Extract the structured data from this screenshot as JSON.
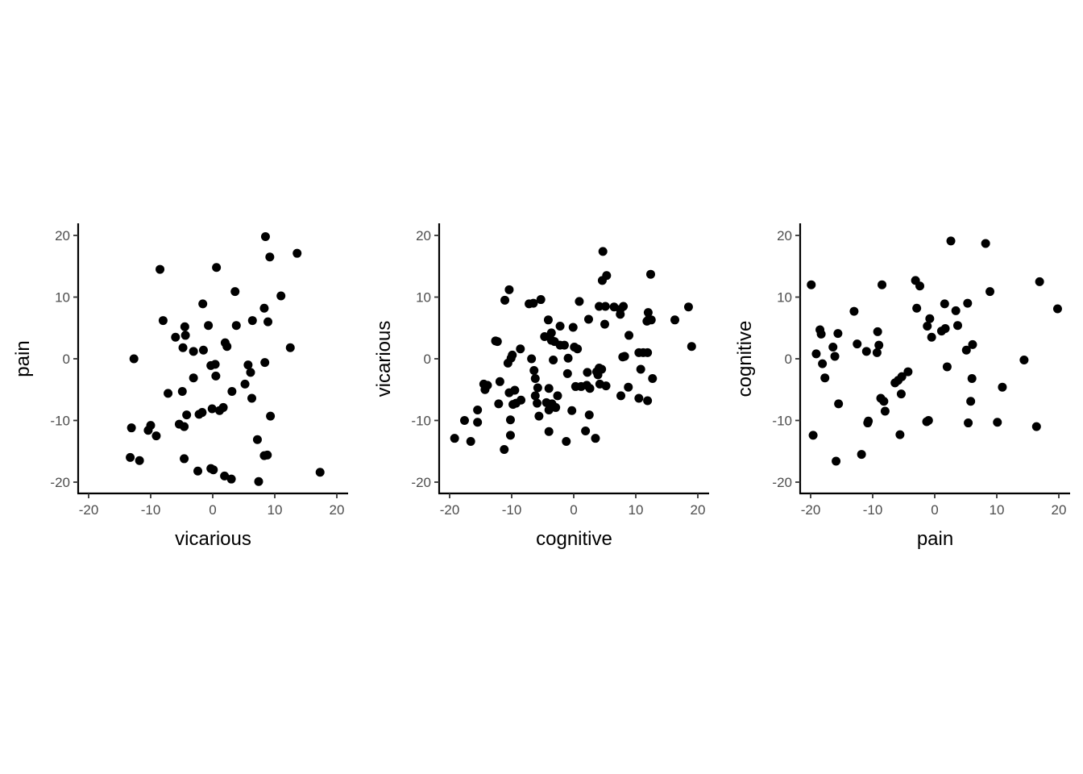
{
  "chart_data": [
    {
      "type": "scatter",
      "xlabel": "vicarious",
      "ylabel": "pain",
      "xlim": [
        -22,
        22
      ],
      "ylim": [
        -22,
        22
      ],
      "xticks": [
        -20,
        -10,
        0,
        10,
        20
      ],
      "yticks": [
        -20,
        -10,
        0,
        10,
        20
      ],
      "grid": false,
      "point_color": "#000000",
      "points": [
        {
          "x": -13.3,
          "y": -16.0
        },
        {
          "x": -11.8,
          "y": -16.5
        },
        {
          "x": -13.1,
          "y": -11.2
        },
        {
          "x": -12.7,
          "y": 0.0
        },
        {
          "x": -10.0,
          "y": -10.8
        },
        {
          "x": -10.4,
          "y": -11.6
        },
        {
          "x": -9.1,
          "y": -12.5
        },
        {
          "x": -8.5,
          "y": 14.5
        },
        {
          "x": -8.0,
          "y": 6.2
        },
        {
          "x": -7.2,
          "y": -5.6
        },
        {
          "x": -6.0,
          "y": 3.5
        },
        {
          "x": -5.4,
          "y": -10.6
        },
        {
          "x": -4.9,
          "y": -5.3
        },
        {
          "x": -4.8,
          "y": 1.8
        },
        {
          "x": -4.5,
          "y": 5.2
        },
        {
          "x": -4.4,
          "y": 3.8
        },
        {
          "x": -4.6,
          "y": -11.0
        },
        {
          "x": -4.6,
          "y": -16.2
        },
        {
          "x": -4.2,
          "y": -9.1
        },
        {
          "x": -3.1,
          "y": -3.1
        },
        {
          "x": -3.1,
          "y": 1.2
        },
        {
          "x": -2.4,
          "y": -18.2
        },
        {
          "x": -2.2,
          "y": -9.0
        },
        {
          "x": -1.7,
          "y": -8.7
        },
        {
          "x": -1.6,
          "y": 8.9
        },
        {
          "x": -1.5,
          "y": 1.4
        },
        {
          "x": -0.7,
          "y": 5.4
        },
        {
          "x": -0.3,
          "y": -1.1
        },
        {
          "x": -0.3,
          "y": -17.8
        },
        {
          "x": -0.1,
          "y": -8.1
        },
        {
          "x": 0.1,
          "y": -18.0
        },
        {
          "x": 0.4,
          "y": -0.9
        },
        {
          "x": 0.5,
          "y": -2.8
        },
        {
          "x": 0.6,
          "y": 14.8
        },
        {
          "x": 1.1,
          "y": -8.4
        },
        {
          "x": 1.7,
          "y": -7.9
        },
        {
          "x": 1.9,
          "y": -19.0
        },
        {
          "x": 2.0,
          "y": 2.6
        },
        {
          "x": 2.3,
          "y": 2.0
        },
        {
          "x": 3.0,
          "y": -19.5
        },
        {
          "x": 3.1,
          "y": -5.3
        },
        {
          "x": 3.6,
          "y": 10.9
        },
        {
          "x": 3.8,
          "y": 5.4
        },
        {
          "x": 5.2,
          "y": -4.1
        },
        {
          "x": 5.7,
          "y": -1.0
        },
        {
          "x": 6.1,
          "y": -2.2
        },
        {
          "x": 6.3,
          "y": -6.4
        },
        {
          "x": 6.4,
          "y": 6.2
        },
        {
          "x": 7.2,
          "y": -13.1
        },
        {
          "x": 7.4,
          "y": -19.9
        },
        {
          "x": 8.3,
          "y": -15.7
        },
        {
          "x": 8.3,
          "y": 8.2
        },
        {
          "x": 8.4,
          "y": -0.6
        },
        {
          "x": 8.5,
          "y": 19.8
        },
        {
          "x": 8.8,
          "y": -15.6
        },
        {
          "x": 8.9,
          "y": 6.0
        },
        {
          "x": 9.2,
          "y": 16.5
        },
        {
          "x": 9.3,
          "y": -9.3
        },
        {
          "x": 11.0,
          "y": 10.2
        },
        {
          "x": 12.5,
          "y": 1.8
        },
        {
          "x": 13.6,
          "y": 17.1
        },
        {
          "x": 17.3,
          "y": -18.4
        }
      ]
    },
    {
      "type": "scatter",
      "xlabel": "cognitive",
      "ylabel": "vicarious",
      "xlim": [
        -22,
        22
      ],
      "ylim": [
        -22,
        22
      ],
      "xticks": [
        -20,
        -10,
        0,
        10,
        20
      ],
      "yticks": [
        -20,
        -10,
        0,
        10,
        20
      ],
      "grid": false,
      "point_color": "#000000",
      "points": [
        {
          "x": -19.2,
          "y": -12.9
        },
        {
          "x": -17.6,
          "y": -10.0
        },
        {
          "x": -16.6,
          "y": -13.4
        },
        {
          "x": -15.5,
          "y": -10.3
        },
        {
          "x": -15.5,
          "y": -8.3
        },
        {
          "x": -14.5,
          "y": -4.1
        },
        {
          "x": -14.3,
          "y": -5.0
        },
        {
          "x": -13.9,
          "y": -4.3
        },
        {
          "x": -12.6,
          "y": 2.9
        },
        {
          "x": -12.3,
          "y": 2.8
        },
        {
          "x": -12.1,
          "y": -7.3
        },
        {
          "x": -11.9,
          "y": -3.7
        },
        {
          "x": -11.2,
          "y": -14.7
        },
        {
          "x": -11.1,
          "y": 9.5
        },
        {
          "x": -10.6,
          "y": -0.7
        },
        {
          "x": -10.4,
          "y": 11.2
        },
        {
          "x": -10.4,
          "y": -5.5
        },
        {
          "x": -10.2,
          "y": -12.4
        },
        {
          "x": -10.2,
          "y": -9.9
        },
        {
          "x": -10.1,
          "y": 0.1
        },
        {
          "x": -9.9,
          "y": 0.6
        },
        {
          "x": -9.8,
          "y": -7.4
        },
        {
          "x": -9.5,
          "y": -5.1
        },
        {
          "x": -9.3,
          "y": -7.2
        },
        {
          "x": -8.6,
          "y": 1.6
        },
        {
          "x": -8.5,
          "y": -6.7
        },
        {
          "x": -7.2,
          "y": 8.9
        },
        {
          "x": -6.8,
          "y": 0.0
        },
        {
          "x": -6.5,
          "y": 9.0
        },
        {
          "x": -6.4,
          "y": -1.9
        },
        {
          "x": -6.2,
          "y": -3.2
        },
        {
          "x": -6.2,
          "y": -6.0
        },
        {
          "x": -5.9,
          "y": -7.2
        },
        {
          "x": -5.8,
          "y": -4.7
        },
        {
          "x": -5.6,
          "y": -9.3
        },
        {
          "x": -5.3,
          "y": 9.6
        },
        {
          "x": -4.7,
          "y": 3.6
        },
        {
          "x": -4.4,
          "y": -7.1
        },
        {
          "x": -4.1,
          "y": 6.3
        },
        {
          "x": -4.0,
          "y": -8.3
        },
        {
          "x": -4.0,
          "y": -11.8
        },
        {
          "x": -4.0,
          "y": -4.8
        },
        {
          "x": -3.6,
          "y": 4.2
        },
        {
          "x": -3.6,
          "y": 3.0
        },
        {
          "x": -3.5,
          "y": -7.3
        },
        {
          "x": -3.3,
          "y": -0.2
        },
        {
          "x": -3.1,
          "y": 2.8
        },
        {
          "x": -2.9,
          "y": -7.9
        },
        {
          "x": -2.6,
          "y": -6.0
        },
        {
          "x": -2.2,
          "y": 5.3
        },
        {
          "x": -2.2,
          "y": 2.2
        },
        {
          "x": -1.5,
          "y": 2.2
        },
        {
          "x": -1.2,
          "y": -13.4
        },
        {
          "x": -1.0,
          "y": -2.4
        },
        {
          "x": -0.9,
          "y": 0.1
        },
        {
          "x": -0.3,
          "y": -8.4
        },
        {
          "x": -0.1,
          "y": 5.1
        },
        {
          "x": 0.1,
          "y": 1.9
        },
        {
          "x": 0.3,
          "y": -4.5
        },
        {
          "x": 0.6,
          "y": 1.6
        },
        {
          "x": 0.9,
          "y": 9.3
        },
        {
          "x": 1.2,
          "y": -4.5
        },
        {
          "x": 1.9,
          "y": -11.7
        },
        {
          "x": 2.1,
          "y": -4.3
        },
        {
          "x": 2.2,
          "y": -2.2
        },
        {
          "x": 2.4,
          "y": 6.4
        },
        {
          "x": 2.5,
          "y": -9.1
        },
        {
          "x": 2.6,
          "y": -4.8
        },
        {
          "x": 3.5,
          "y": -12.9
        },
        {
          "x": 3.7,
          "y": -2.1
        },
        {
          "x": 3.9,
          "y": -2.6
        },
        {
          "x": 4.1,
          "y": -1.5
        },
        {
          "x": 4.1,
          "y": 8.5
        },
        {
          "x": 4.2,
          "y": -4.1
        },
        {
          "x": 4.5,
          "y": -1.7
        },
        {
          "x": 4.6,
          "y": 12.7
        },
        {
          "x": 4.7,
          "y": 17.4
        },
        {
          "x": 5.0,
          "y": 5.6
        },
        {
          "x": 5.1,
          "y": 8.5
        },
        {
          "x": 5.2,
          "y": -4.4
        },
        {
          "x": 5.3,
          "y": 13.5
        },
        {
          "x": 6.5,
          "y": 8.4
        },
        {
          "x": 7.5,
          "y": 7.2
        },
        {
          "x": 7.5,
          "y": 8.0
        },
        {
          "x": 7.6,
          "y": -6.0
        },
        {
          "x": 7.9,
          "y": 0.3
        },
        {
          "x": 8.0,
          "y": 8.5
        },
        {
          "x": 8.2,
          "y": 0.4
        },
        {
          "x": 8.8,
          "y": -4.6
        },
        {
          "x": 8.9,
          "y": 3.8
        },
        {
          "x": 10.5,
          "y": -6.4
        },
        {
          "x": 10.5,
          "y": 1.0
        },
        {
          "x": 10.8,
          "y": -1.7
        },
        {
          "x": 11.2,
          "y": 1.0
        },
        {
          "x": 11.8,
          "y": 6.1
        },
        {
          "x": 11.9,
          "y": -6.8
        },
        {
          "x": 11.9,
          "y": 1.0
        },
        {
          "x": 12.0,
          "y": 7.5
        },
        {
          "x": 12.1,
          "y": 6.4
        },
        {
          "x": 12.4,
          "y": 13.7
        },
        {
          "x": 12.5,
          "y": 6.3
        },
        {
          "x": 12.7,
          "y": -3.2
        },
        {
          "x": 16.3,
          "y": 6.3
        },
        {
          "x": 18.5,
          "y": 8.4
        },
        {
          "x": 19.0,
          "y": 2.0
        }
      ]
    },
    {
      "type": "scatter",
      "xlabel": "pain",
      "ylabel": "cognitive",
      "xlim": [
        -22,
        22
      ],
      "ylim": [
        -22,
        22
      ],
      "xticks": [
        -20,
        -10,
        0,
        10,
        20
      ],
      "yticks": [
        -20,
        -10,
        0,
        10,
        20
      ],
      "grid": false,
      "point_color": "#000000",
      "points": [
        {
          "x": -19.9,
          "y": 12.0
        },
        {
          "x": -19.6,
          "y": -12.4
        },
        {
          "x": -19.1,
          "y": 0.8
        },
        {
          "x": -18.5,
          "y": 4.7
        },
        {
          "x": -18.3,
          "y": 4.0
        },
        {
          "x": -18.1,
          "y": -0.8
        },
        {
          "x": -17.7,
          "y": -3.1
        },
        {
          "x": -16.4,
          "y": 1.9
        },
        {
          "x": -16.1,
          "y": 0.4
        },
        {
          "x": -15.9,
          "y": -16.6
        },
        {
          "x": -15.6,
          "y": 4.1
        },
        {
          "x": -15.5,
          "y": -7.3
        },
        {
          "x": -13.0,
          "y": 7.7
        },
        {
          "x": -12.5,
          "y": 2.4
        },
        {
          "x": -11.8,
          "y": -15.5
        },
        {
          "x": -11.0,
          "y": 1.2
        },
        {
          "x": -10.8,
          "y": -10.4
        },
        {
          "x": -10.7,
          "y": -10.1
        },
        {
          "x": -9.3,
          "y": 1.0
        },
        {
          "x": -9.2,
          "y": 4.4
        },
        {
          "x": -9.0,
          "y": 2.2
        },
        {
          "x": -8.7,
          "y": -6.4
        },
        {
          "x": -8.5,
          "y": 12.0
        },
        {
          "x": -8.2,
          "y": -6.9
        },
        {
          "x": -8.0,
          "y": -8.5
        },
        {
          "x": -6.4,
          "y": -3.9
        },
        {
          "x": -5.9,
          "y": -3.5
        },
        {
          "x": -5.6,
          "y": -12.3
        },
        {
          "x": -5.4,
          "y": -5.7
        },
        {
          "x": -5.3,
          "y": -2.9
        },
        {
          "x": -4.3,
          "y": -2.1
        },
        {
          "x": -3.1,
          "y": 12.7
        },
        {
          "x": -2.9,
          "y": 8.2
        },
        {
          "x": -2.4,
          "y": 11.8
        },
        {
          "x": -1.3,
          "y": -10.2
        },
        {
          "x": -1.2,
          "y": 5.3
        },
        {
          "x": -1.0,
          "y": -10.0
        },
        {
          "x": -0.8,
          "y": 6.5
        },
        {
          "x": -0.5,
          "y": 3.5
        },
        {
          "x": 1.1,
          "y": 4.5
        },
        {
          "x": 1.6,
          "y": 8.9
        },
        {
          "x": 1.7,
          "y": 4.9
        },
        {
          "x": 2.0,
          "y": -1.3
        },
        {
          "x": 2.6,
          "y": 19.1
        },
        {
          "x": 3.4,
          "y": 7.8
        },
        {
          "x": 3.7,
          "y": 5.4
        },
        {
          "x": 5.1,
          "y": 1.4
        },
        {
          "x": 5.3,
          "y": 9.0
        },
        {
          "x": 5.4,
          "y": -10.4
        },
        {
          "x": 5.8,
          "y": -6.9
        },
        {
          "x": 6.1,
          "y": 2.3
        },
        {
          "x": 6.0,
          "y": -3.2
        },
        {
          "x": 8.2,
          "y": 18.7
        },
        {
          "x": 8.9,
          "y": 10.9
        },
        {
          "x": 10.1,
          "y": -10.3
        },
        {
          "x": 10.9,
          "y": -4.6
        },
        {
          "x": 14.4,
          "y": -0.2
        },
        {
          "x": 16.4,
          "y": -11.0
        },
        {
          "x": 16.9,
          "y": 12.5
        },
        {
          "x": 19.8,
          "y": 8.1
        }
      ]
    }
  ]
}
